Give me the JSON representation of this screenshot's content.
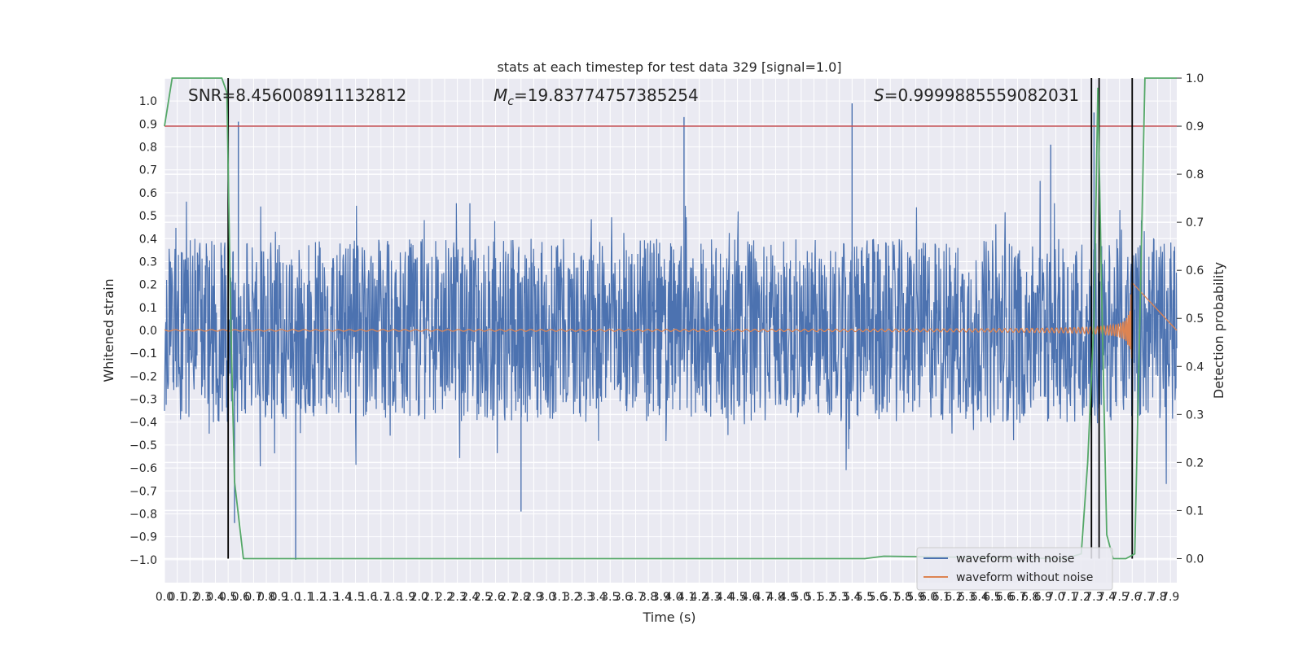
{
  "chart_data": {
    "type": "line",
    "title": "stats at each timestep for test data 329 [signal=1.0]",
    "xlabel": "Time (s)",
    "ylabel_left": "Whitened strain",
    "ylabel_right": "Detection probability",
    "xlim": [
      0,
      7.95
    ],
    "ylim_left": [
      -1.1,
      1.1
    ],
    "ylim_right": [
      -0.05,
      1.0
    ],
    "x_ticks": [
      "0.0",
      "0.1",
      "0.2",
      "0.3",
      "0.4",
      "0.5",
      "0.6",
      "0.7",
      "0.8",
      "0.9",
      "1.0",
      "1.1",
      "1.2",
      "1.3",
      "1.4",
      "1.5",
      "1.6",
      "1.7",
      "1.8",
      "1.9",
      "2.0",
      "2.1",
      "2.2",
      "2.3",
      "2.4",
      "2.5",
      "2.6",
      "2.7",
      "2.8",
      "2.9",
      "3.0",
      "3.1",
      "3.2",
      "3.3",
      "3.4",
      "3.5",
      "3.6",
      "3.7",
      "3.8",
      "3.9",
      "4.0",
      "4.1",
      "4.2",
      "4.3",
      "4.4",
      "4.5",
      "4.6",
      "4.7",
      "4.8",
      "4.9",
      "5.0",
      "5.1",
      "5.2",
      "5.3",
      "5.4",
      "5.5",
      "5.6",
      "5.7",
      "5.8",
      "5.9",
      "6.0",
      "6.1",
      "6.2",
      "6.3",
      "6.4",
      "6.5",
      "6.6",
      "6.7",
      "6.8",
      "6.9",
      "7.0",
      "7.1",
      "7.2",
      "7.3",
      "7.4",
      "7.5",
      "7.6",
      "7.7",
      "7.8",
      "7.9"
    ],
    "y_ticks_left": [
      "1.0",
      "0.9",
      "0.8",
      "0.7",
      "0.6",
      "0.5",
      "0.4",
      "0.3",
      "0.2",
      "0.1",
      "0.0",
      "−0.1",
      "−0.2",
      "−0.3",
      "−0.4",
      "−0.5",
      "−0.6",
      "−0.7",
      "−0.8",
      "−0.9",
      "−1.0"
    ],
    "y_ticks_right": [
      "1.0",
      "0.9",
      "0.8",
      "0.7",
      "0.6",
      "0.5",
      "0.4",
      "0.3",
      "0.2",
      "0.1",
      "0.0"
    ],
    "annotations": {
      "snr": "SNR=8.456008911132812",
      "mc_symbol": "M",
      "mc_sub": "c",
      "mc_value": "=19.83774757385254",
      "s_symbol": "S",
      "s_value": "=0.9999885559082031"
    },
    "series": [
      {
        "name": "waveform with noise",
        "color": "#4c72b0",
        "amplitude_envelope": 0.4,
        "peaks": [
          [
            0.58,
            0.91
          ],
          [
            4.08,
            0.93
          ],
          [
            5.4,
            0.99
          ],
          [
            6.96,
            0.81
          ],
          [
            7.3,
            0.95
          ],
          [
            1.03,
            -1.0
          ],
          [
            0.55,
            -0.84
          ],
          [
            2.8,
            -0.79
          ]
        ]
      },
      {
        "name": "waveform without noise",
        "color": "#dd8452",
        "final_amplitude": 0.33,
        "merger_time": 7.6
      },
      {
        "name": "detection probability",
        "axis": "right",
        "color": "#55a868",
        "x": [
          0.0,
          0.06,
          0.1,
          0.3,
          0.45,
          0.49,
          0.52,
          0.55,
          0.62,
          0.7,
          5.5,
          5.65,
          7.07,
          7.2,
          7.25,
          7.3,
          7.33,
          7.36,
          7.4,
          7.45,
          7.55,
          7.62,
          7.66,
          7.7,
          7.95
        ],
        "y": [
          0.9,
          1.0,
          1.0,
          1.0,
          1.0,
          0.97,
          0.5,
          0.16,
          0.0,
          0.0,
          0.0,
          0.005,
          0.0,
          0.01,
          0.2,
          0.5,
          0.98,
          0.55,
          0.05,
          0.0,
          0.0,
          0.01,
          0.5,
          1.0,
          1.0
        ]
      }
    ],
    "threshold_line": {
      "axis": "right",
      "value": 0.9,
      "color": "#c44e52"
    },
    "vertical_lines": [
      0.5,
      7.28,
      7.34,
      7.6
    ],
    "legend": {
      "placement": "lower-right",
      "entries": [
        "waveform with noise",
        "waveform without noise"
      ]
    },
    "grid": true
  }
}
